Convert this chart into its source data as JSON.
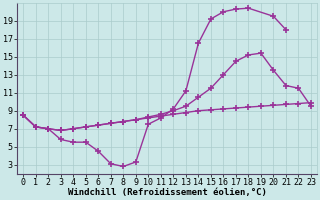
{
  "background_color": "#cce8e8",
  "grid_color": "#aacccc",
  "line_color": "#993399",
  "marker": "+",
  "markersize": 4,
  "linewidth": 1.0,
  "xlabel": "Windchill (Refroidissement éolien,°C)",
  "xlabel_fontsize": 6.5,
  "tick_fontsize": 6,
  "xlim": [
    -0.5,
    23.5
  ],
  "ylim": [
    2,
    21
  ],
  "yticks": [
    3,
    5,
    7,
    9,
    11,
    13,
    15,
    17,
    19
  ],
  "xticks": [
    0,
    1,
    2,
    3,
    4,
    5,
    6,
    7,
    8,
    9,
    10,
    11,
    12,
    13,
    14,
    15,
    16,
    17,
    18,
    19,
    20,
    21,
    22,
    23
  ],
  "curve1_x": [
    0,
    1,
    2,
    3,
    4,
    5,
    6,
    7,
    8,
    9,
    10,
    11,
    12,
    13,
    14,
    15,
    16,
    17,
    18,
    20,
    21
  ],
  "curve1_y": [
    8.5,
    7.2,
    7.0,
    5.8,
    5.5,
    5.5,
    4.5,
    3.1,
    2.8,
    3.3,
    7.5,
    8.2,
    9.2,
    11.2,
    16.5,
    19.2,
    20.0,
    20.3,
    20.4,
    19.5,
    18.0
  ],
  "curve2_x": [
    0,
    1,
    2,
    3,
    4,
    5,
    6,
    7,
    8,
    9,
    10,
    11,
    12,
    13,
    14,
    15,
    16,
    17,
    18,
    19,
    20,
    21,
    22,
    23
  ],
  "curve2_y": [
    8.5,
    7.2,
    7.0,
    6.8,
    7.0,
    7.2,
    7.4,
    7.6,
    7.8,
    8.0,
    8.3,
    8.6,
    9.0,
    9.5,
    10.5,
    11.5,
    13.0,
    14.5,
    15.2,
    15.4,
    13.5,
    11.8,
    11.5,
    9.5
  ],
  "curve3_x": [
    0,
    1,
    2,
    3,
    4,
    5,
    6,
    7,
    8,
    9,
    10,
    11,
    12,
    13,
    14,
    15,
    16,
    17,
    18,
    19,
    20,
    21,
    22,
    23
  ],
  "curve3_y": [
    8.5,
    7.2,
    7.0,
    6.8,
    7.0,
    7.2,
    7.4,
    7.6,
    7.8,
    8.0,
    8.2,
    8.4,
    8.6,
    8.8,
    9.0,
    9.1,
    9.2,
    9.3,
    9.4,
    9.5,
    9.6,
    9.7,
    9.8,
    9.9
  ]
}
